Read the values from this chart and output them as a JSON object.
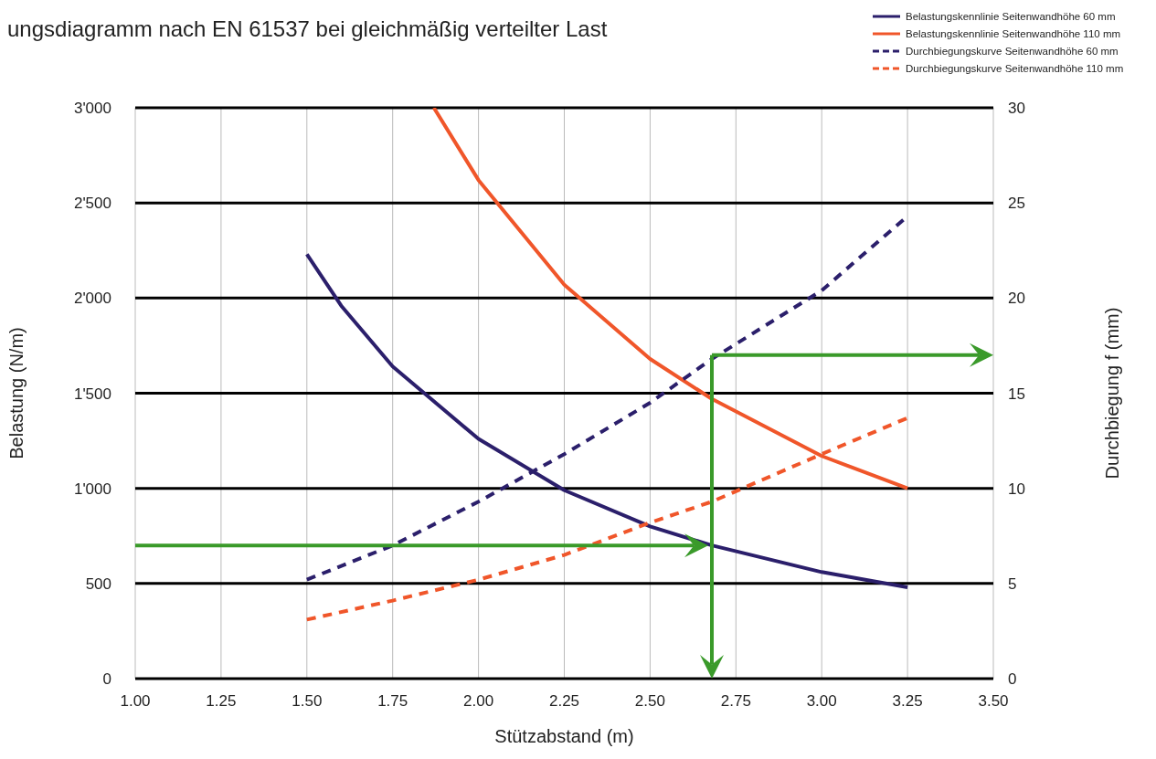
{
  "chart_data": {
    "type": "line",
    "title": "ungsdiagramm nach EN 61537 bei gleichmäßig verteilter Last",
    "xlabel": "Stützabstand (m)",
    "ylabel": "Belastung (N/m)",
    "y2label": "Durchbiegung f (mm)",
    "xlim": [
      1,
      3.5
    ],
    "xticks": [
      {
        "value": 1,
        "label": "1.00"
      },
      1.25,
      {
        "value": 1.5,
        "label": "1.50"
      },
      1.75,
      {
        "value": 2,
        "label": "2.00"
      },
      2.25,
      {
        "value": 2.5,
        "label": "2.50"
      },
      2.75,
      {
        "value": 3,
        "label": "3.00"
      },
      3.25,
      {
        "value": 3.5,
        "label": "3.50"
      }
    ],
    "ylim": [
      0,
      3000
    ],
    "yticks": [
      0,
      500,
      {
        "value": 1000,
        "label": "1'000"
      },
      {
        "value": 1500,
        "label": "1'500"
      },
      {
        "value": 2000,
        "label": "2'000"
      },
      {
        "value": 2500,
        "label": "2'500"
      },
      {
        "value": 3000,
        "label": "3'000"
      }
    ],
    "y2lim": [
      0,
      30
    ],
    "y2ticks": [
      0,
      5,
      10,
      15,
      20,
      25,
      30
    ],
    "grid": true,
    "legend": "top right",
    "marker": "none",
    "ref_lines": [
      {
        "axis": "y",
        "value": 700,
        "color": "#3a9a2a"
      },
      {
        "axis": "x",
        "value": 2.68,
        "color": "#3a9a2a"
      },
      {
        "axis": "y2",
        "value": 17,
        "color": "#3a9a2a"
      }
    ],
    "series": [
      {
        "name": "Belastungskennlinie Seitenwandhöhe 60 mm",
        "color": "#2b1f6b",
        "line_style": "solid",
        "x": [
          1.5,
          1.6,
          1.75,
          2.0,
          2.25,
          2.5,
          2.68,
          3.0,
          3.25
        ],
        "values": [
          2230,
          1960,
          1640,
          1260,
          990,
          800,
          700,
          560,
          480
        ]
      },
      {
        "name": "Belastungskennlinie Seitenwandhöhe 110 mm",
        "color": "#f0562a",
        "line_style": "solid",
        "x": [
          1.87,
          2.0,
          2.25,
          2.5,
          2.68,
          3.0,
          3.25
        ],
        "values": [
          3000,
          2620,
          2070,
          1680,
          1470,
          1170,
          1000
        ]
      },
      {
        "name": "Durchbiegungskurve Seitenwandhöhe 60 mm",
        "color": "#2b1f6b",
        "line_style": "dashed",
        "axis": "y2",
        "x": [
          1.5,
          1.75,
          2.0,
          2.25,
          2.5,
          2.68,
          3.0,
          3.25
        ],
        "values": [
          5.2,
          7.0,
          9.3,
          11.8,
          14.5,
          16.8,
          20.4,
          24.3
        ]
      },
      {
        "name": "Durchbiegungskurve Seitenwandhöhe 110 mm",
        "color": "#f0562a",
        "line_style": "dashed",
        "axis": "y2",
        "x": [
          1.5,
          1.75,
          2.0,
          2.25,
          2.5,
          2.68,
          3.0,
          3.25
        ],
        "values": [
          3.1,
          4.1,
          5.2,
          6.5,
          8.2,
          9.3,
          11.8,
          13.7
        ]
      }
    ]
  }
}
